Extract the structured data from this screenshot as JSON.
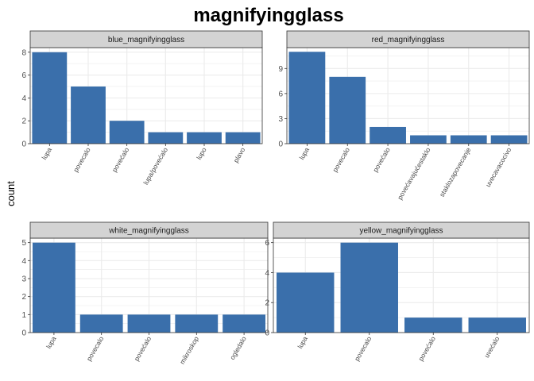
{
  "chart_data": {
    "type": "bar",
    "title": "magnifyingglass",
    "ylabel": "count",
    "xlabel": "",
    "colors": {
      "bar": "#3A6FAB",
      "strip": "#D3D3D3",
      "grid": "#EBEBEB",
      "border": "#333333"
    },
    "panels": [
      {
        "strip": "blue_magnifyingglass",
        "categories": [
          "lupa",
          "povecalo",
          "povećalo",
          "lupa/povećalo",
          "lupo",
          "plavo"
        ],
        "values": [
          8,
          5,
          2,
          1,
          1,
          1
        ],
        "ylim": [
          0,
          8.4
        ],
        "yticks": [
          0,
          2,
          4,
          6,
          8
        ]
      },
      {
        "strip": "red_magnifyingglass",
        "categories": [
          "lupa",
          "povecalo",
          "povećalo",
          "povećavajućestaklo",
          "staklozapovecanje",
          "uvecavacocivo"
        ],
        "values": [
          11,
          8,
          2,
          1,
          1,
          1
        ],
        "ylim": [
          0,
          11.5
        ],
        "yticks": [
          0,
          3,
          6,
          9
        ]
      },
      {
        "strip": "white_magnifyingglass",
        "categories": [
          "lupa",
          "povecalo",
          "povećalo",
          "mikroskop",
          "ogledalo"
        ],
        "values": [
          5,
          1,
          1,
          1,
          1
        ],
        "ylim": [
          0,
          5.25
        ],
        "yticks": [
          0,
          1,
          2,
          3,
          4,
          5
        ]
      },
      {
        "strip": "yellow_magnifyingglass",
        "categories": [
          "lupa",
          "povecalo",
          "povećalo",
          "uvećalo"
        ],
        "values": [
          4,
          6,
          1,
          1
        ],
        "ylim": [
          0,
          6.3
        ],
        "yticks": [
          0,
          2,
          4,
          6
        ]
      }
    ]
  }
}
